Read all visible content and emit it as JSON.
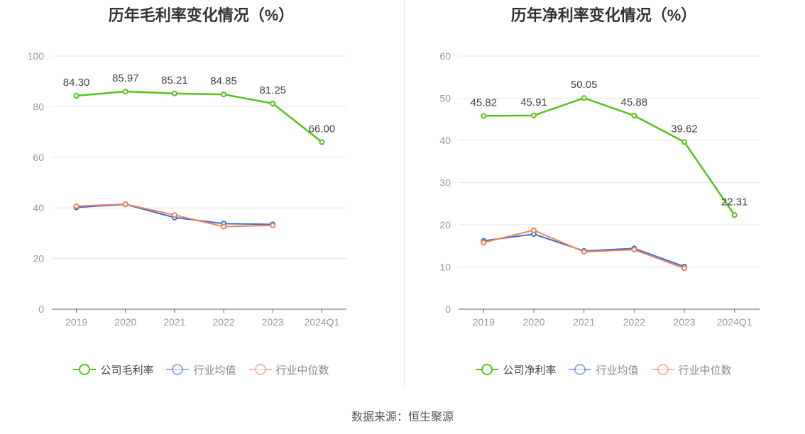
{
  "source_text": "数据来源：恒生聚源",
  "chart_data": [
    {
      "type": "line",
      "title": "历年毛利率变化情况（%）",
      "categories": [
        "2019",
        "2020",
        "2021",
        "2022",
        "2023",
        "2024Q1"
      ],
      "ylim": [
        0,
        100
      ],
      "yticks": [
        0,
        20,
        40,
        60,
        80,
        100
      ],
      "grid": true,
      "legend_position": "bottom",
      "series": [
        {
          "name": "公司毛利率",
          "color": "#52c41a",
          "values": [
            84.3,
            85.97,
            85.21,
            84.85,
            81.25,
            66.0
          ],
          "labels": [
            "84.30",
            "85.97",
            "85.21",
            "84.85",
            "81.25",
            "66.00"
          ],
          "legend_dim": false
        },
        {
          "name": "行业均值",
          "color": "#3a6fd8",
          "values": [
            40.2,
            41.4,
            36.2,
            33.8,
            33.5,
            null
          ],
          "labels": null,
          "legend_dim": true
        },
        {
          "name": "行业中位数",
          "color": "#f0845a",
          "values": [
            40.7,
            41.5,
            37.2,
            32.6,
            33.1,
            null
          ],
          "labels": null,
          "legend_dim": true
        }
      ]
    },
    {
      "type": "line",
      "title": "历年净利率变化情况（%）",
      "categories": [
        "2019",
        "2020",
        "2021",
        "2022",
        "2023",
        "2024Q1"
      ],
      "ylim": [
        0,
        60
      ],
      "yticks": [
        0,
        10,
        20,
        30,
        40,
        50,
        60
      ],
      "grid": true,
      "legend_position": "bottom",
      "series": [
        {
          "name": "公司净利率",
          "color": "#52c41a",
          "values": [
            45.82,
            45.91,
            50.05,
            45.88,
            39.62,
            22.31
          ],
          "labels": [
            "45.82",
            "45.91",
            "50.05",
            "45.88",
            "39.62",
            "22.31"
          ],
          "legend_dim": false
        },
        {
          "name": "行业均值",
          "color": "#3a6fd8",
          "values": [
            16.2,
            17.8,
            13.8,
            14.4,
            10.1,
            null
          ],
          "labels": null,
          "legend_dim": true
        },
        {
          "name": "行业中位数",
          "color": "#f0845a",
          "values": [
            15.8,
            18.7,
            13.6,
            14.1,
            9.7,
            null
          ],
          "labels": null,
          "legend_dim": true
        }
      ]
    }
  ]
}
